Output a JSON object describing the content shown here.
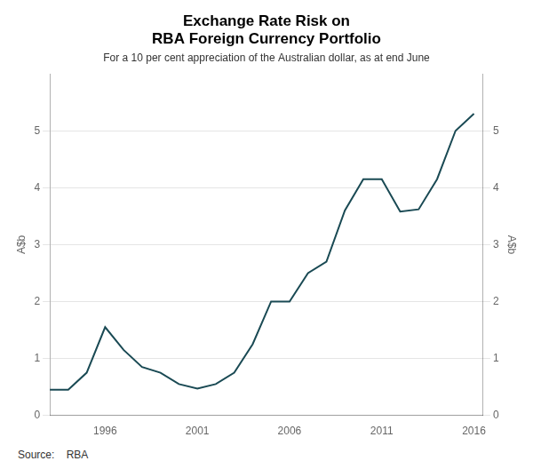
{
  "chart_data": {
    "type": "line",
    "title": [
      "Exchange Rate Risk on",
      "RBA Foreign Currency Portfolio"
    ],
    "subtitle": "For a 10 per cent appreciation of the Australian dollar, as at end June",
    "y_label": "A$b",
    "y2_label": "A$b",
    "source": "Source:    RBA",
    "x": [
      1993,
      1994,
      1995,
      1996,
      1997,
      1998,
      1999,
      2000,
      2001,
      2002,
      2003,
      2004,
      2005,
      2006,
      2007,
      2008,
      2009,
      2010,
      2011,
      2012,
      2013,
      2014,
      2015,
      2016
    ],
    "values": [
      0.45,
      0.45,
      0.75,
      1.55,
      1.15,
      0.85,
      0.75,
      0.55,
      0.47,
      0.55,
      0.75,
      1.25,
      2.0,
      2.0,
      2.5,
      2.7,
      3.6,
      4.15,
      4.15,
      3.58,
      3.62,
      4.15,
      5.0,
      5.3
    ],
    "color": "#1a4a54",
    "xlim": [
      1993,
      2016.5
    ],
    "xticks": [
      1996,
      2001,
      2006,
      2011,
      2016
    ],
    "ylim": [
      0,
      6
    ],
    "yticks": [
      0,
      1,
      2,
      3,
      4,
      5
    ],
    "y2lim": [
      0,
      6
    ],
    "y2ticks": [
      0,
      1,
      2,
      3,
      4,
      5
    ],
    "grid": "y"
  }
}
